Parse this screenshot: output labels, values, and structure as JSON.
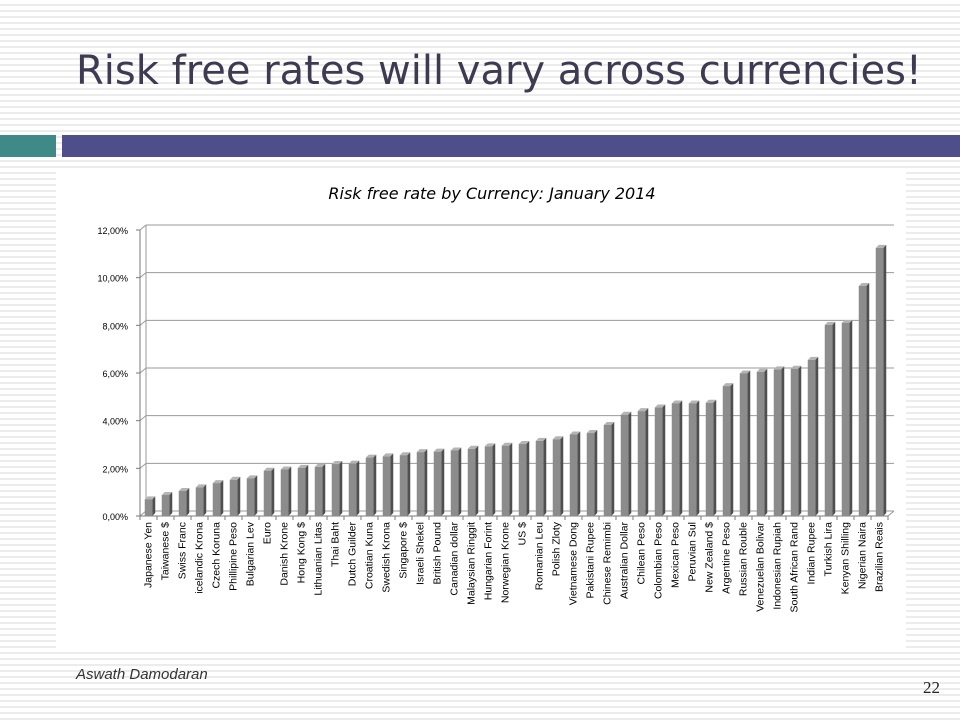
{
  "slide": {
    "title": "Risk free rates will vary across currencies!",
    "footer_author": "Aswath Damodaran",
    "page_number": "22"
  },
  "colors": {
    "accent_teal": "#3f8a86",
    "accent_purple": "#4e4e8a",
    "bar": "#8c8c8c"
  },
  "chart_data": {
    "type": "bar",
    "title": "Risk free rate by Currency: January 2014",
    "xlabel": "",
    "ylabel": "",
    "ylim": [
      0,
      12
    ],
    "yticks": [
      "0,00%",
      "2,00%",
      "4,00%",
      "6,00%",
      "8,00%",
      "10,00%",
      "12,00%"
    ],
    "grid": true,
    "legend": "none",
    "categories": [
      "Japanese Yen",
      "Taiwanese $",
      "Swiss Franc",
      "icelandic Krona",
      "Czech Koruna",
      "Phillipine Peso",
      "Bulgarian Lev",
      "Euro",
      "Danish Krone",
      "Hong Kong $",
      "Lithuanian Litas",
      "Thai Baht",
      "Dutch Guilder",
      "Croatian Kuna",
      "Swedish Krona",
      "Singapore $",
      "Israeli Shekel",
      "British Pound",
      "Canadian dollar",
      "Malaysian Ringgit",
      "Hungarian Forint",
      "Norwegian Krone",
      "US $",
      "Romanian Leu",
      "Polish Zloty",
      "Vietnamese Dong",
      "Pakistani Rupee",
      "Chinese Remimbi",
      "Australian Dollar",
      "Chilean Peso",
      "Colombian Peso",
      "Mexican Peso",
      "Peruvian Sul",
      "New Zealand $",
      "Argentine Peso",
      "Russian Rouble",
      "Venezuelan Bolivar",
      "Indonesian Rupiah",
      "South African Rand",
      "Indian Rupee",
      "Turkish Lira",
      "Kenyan Shilling",
      "Nigerian Naira",
      "Brazilian Reais"
    ],
    "values": [
      0.7,
      0.88,
      1.05,
      1.2,
      1.38,
      1.52,
      1.58,
      1.9,
      1.95,
      2.02,
      2.06,
      2.18,
      2.2,
      2.45,
      2.5,
      2.55,
      2.68,
      2.7,
      2.75,
      2.82,
      2.92,
      2.95,
      3.02,
      3.15,
      3.22,
      3.42,
      3.48,
      3.82,
      4.25,
      4.4,
      4.55,
      4.72,
      4.72,
      4.75,
      5.45,
      5.98,
      6.05,
      6.15,
      6.18,
      6.55,
      8.02,
      8.1,
      9.65,
      11.25
    ]
  }
}
